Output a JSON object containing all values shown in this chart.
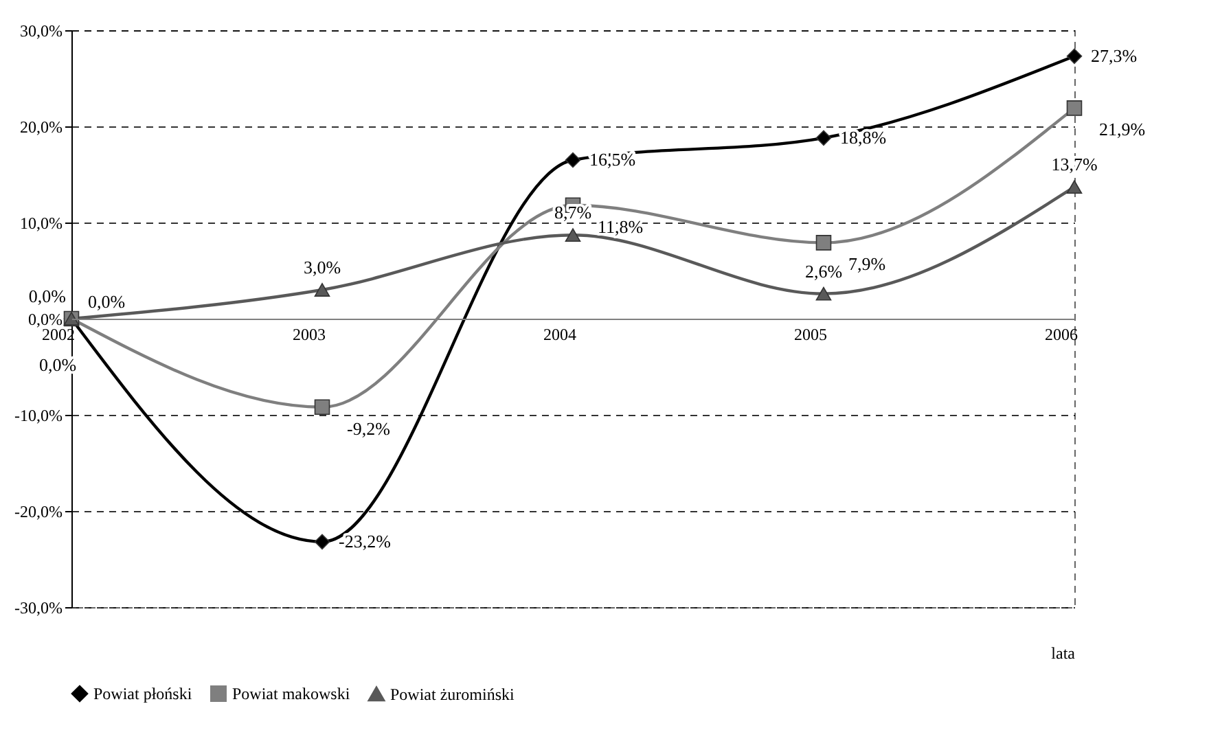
{
  "chart_data": {
    "type": "line",
    "xlabel": "lata",
    "categories": [
      "2002",
      "2003",
      "2004",
      "2005",
      "2006"
    ],
    "ylim": [
      -30,
      30
    ],
    "yticks": [
      {
        "value": -30,
        "label": "-30,0%"
      },
      {
        "value": -20,
        "label": "-20,0%"
      },
      {
        "value": -10,
        "label": "-10,0%"
      },
      {
        "value": 0,
        "label": "0,0%"
      },
      {
        "value": 10,
        "label": "10,0%"
      },
      {
        "value": 20,
        "label": "20,0%"
      },
      {
        "value": 30,
        "label": "30,0%"
      }
    ],
    "grid": "y",
    "legend": "bottom",
    "line_style": "solid",
    "series": [
      {
        "name": "Powiat płoński",
        "color": "#000000",
        "marker": "diamond",
        "values": [
          0.0,
          -23.2,
          16.5,
          18.8,
          27.3
        ],
        "value_labels": [
          "0,0%",
          "-23,2%",
          "16,5%",
          "18,8%",
          "27,3%"
        ]
      },
      {
        "name": "Powiat makowski",
        "color": "#7f7f7f",
        "marker": "square",
        "values": [
          0.0,
          -9.2,
          11.8,
          7.9,
          21.9
        ],
        "value_labels": [
          "0,0%",
          "-9,2%",
          "11,8%",
          "7,9%",
          "21,9%"
        ]
      },
      {
        "name": "Powiat żuromiński",
        "color": "#595959",
        "marker": "triangle",
        "values": [
          0.0,
          3.0,
          8.7,
          2.6,
          13.7
        ],
        "value_labels": [
          "0,0%",
          "3,0%",
          "8,7%",
          "2,6%",
          "13,7%"
        ]
      }
    ]
  }
}
